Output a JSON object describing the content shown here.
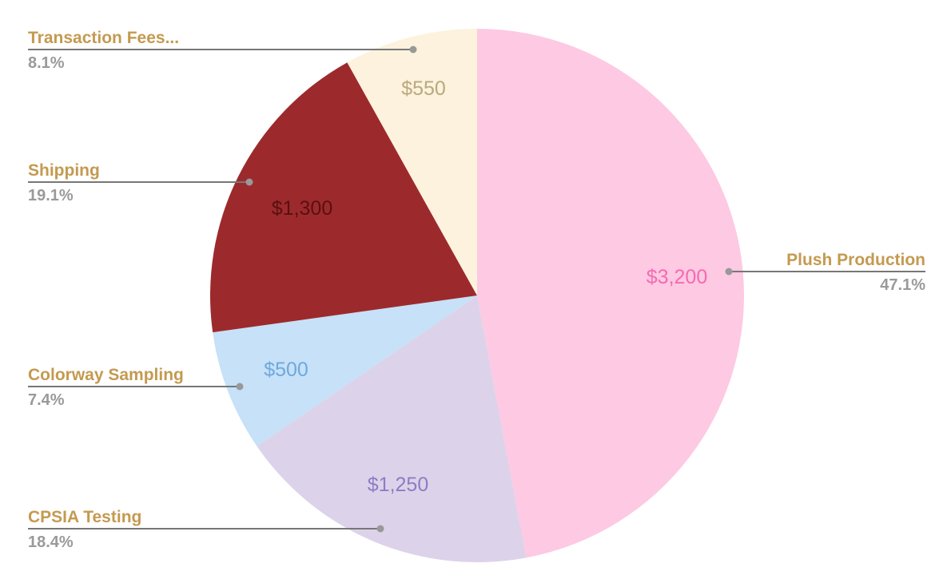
{
  "chart_data": {
    "type": "pie",
    "title": "",
    "start_angle": "top",
    "direction": "clockwise",
    "slices": [
      {
        "label": "Plush Production",
        "value": 3200,
        "value_label": "$3,200",
        "percent_label": "47.1%",
        "color": "#fdc9e3",
        "value_color": "#f56bb0"
      },
      {
        "label": "CPSIA Testing",
        "value": 1250,
        "value_label": "$1,250",
        "percent_label": "18.4%",
        "color": "#dcd3ea",
        "value_color": "#8e7cc3"
      },
      {
        "label": "Colorway Sampling",
        "value": 500,
        "value_label": "$500",
        "percent_label": "7.4%",
        "color": "#c6e1f8",
        "value_color": "#6fa8dc"
      },
      {
        "label": "Shipping",
        "value": 1300,
        "value_label": "$1,300",
        "percent_label": "19.1%",
        "color": "#9c2a2c",
        "value_color": "#5a0f10"
      },
      {
        "label": "Transaction Fees...",
        "value": 550,
        "value_label": "$550",
        "percent_label": "8.1%",
        "color": "#fcf2dd",
        "value_color": "#b9a97c"
      }
    ],
    "label_color": "#c49a50",
    "percent_color": "#9a9a9a",
    "legend": "none"
  }
}
